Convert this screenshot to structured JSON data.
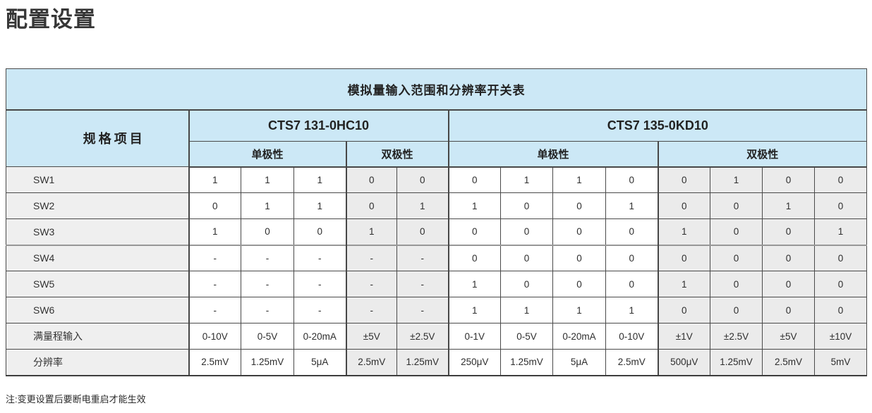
{
  "page": {
    "title": "配置设置",
    "note": "注:变更设置后要断电重启才能生效"
  },
  "colors": {
    "header_blue": "#cce8f6",
    "label_gray": "#efefef",
    "bipolar_gray": "#ebebeb",
    "border_dark": "#4a4a4a"
  },
  "table": {
    "title": "模拟量输入范围和分辨率开关表",
    "spec_header": "规格项目",
    "groups": [
      {
        "name": "CTS7 131-0HC10",
        "subgroups": [
          {
            "label": "单极性",
            "cols": 3
          },
          {
            "label": "双极性",
            "cols": 2
          }
        ]
      },
      {
        "name": "CTS7 135-0KD10",
        "subgroups": [
          {
            "label": "单极性",
            "cols": 4
          },
          {
            "label": "双极性",
            "cols": 4
          }
        ]
      }
    ],
    "rows": [
      {
        "label": "SW1",
        "values": [
          "1",
          "1",
          "1",
          "0",
          "0",
          "0",
          "1",
          "1",
          "0",
          "0",
          "1",
          "0",
          "0"
        ]
      },
      {
        "label": "SW2",
        "values": [
          "0",
          "1",
          "1",
          "0",
          "1",
          "1",
          "0",
          "0",
          "1",
          "0",
          "0",
          "1",
          "0"
        ]
      },
      {
        "label": "SW3",
        "values": [
          "1",
          "0",
          "0",
          "1",
          "0",
          "0",
          "0",
          "0",
          "0",
          "1",
          "0",
          "0",
          "1"
        ]
      },
      {
        "label": "SW4",
        "values": [
          "-",
          "-",
          "-",
          "-",
          "-",
          "0",
          "0",
          "0",
          "0",
          "0",
          "0",
          "0",
          "0"
        ]
      },
      {
        "label": "SW5",
        "values": [
          "-",
          "-",
          "-",
          "-",
          "-",
          "1",
          "0",
          "0",
          "0",
          "1",
          "0",
          "0",
          "0"
        ]
      },
      {
        "label": "SW6",
        "values": [
          "-",
          "-",
          "-",
          "-",
          "-",
          "1",
          "1",
          "1",
          "1",
          "0",
          "0",
          "0",
          "0"
        ]
      },
      {
        "label": "满量程输入",
        "values": [
          "0-10V",
          "0-5V",
          "0-20mA",
          "±5V",
          "±2.5V",
          "0-1V",
          "0-5V",
          "0-20mA",
          "0-10V",
          "±1V",
          "±2.5V",
          "±5V",
          "±10V"
        ]
      },
      {
        "label": "分辨率",
        "values": [
          "2.5mV",
          "1.25mV",
          "5μA",
          "2.5mV",
          "1.25mV",
          "250μV",
          "1.25mV",
          "5μA",
          "2.5mV",
          "500μV",
          "1.25mV",
          "2.5mV",
          "5mV"
        ]
      }
    ]
  }
}
